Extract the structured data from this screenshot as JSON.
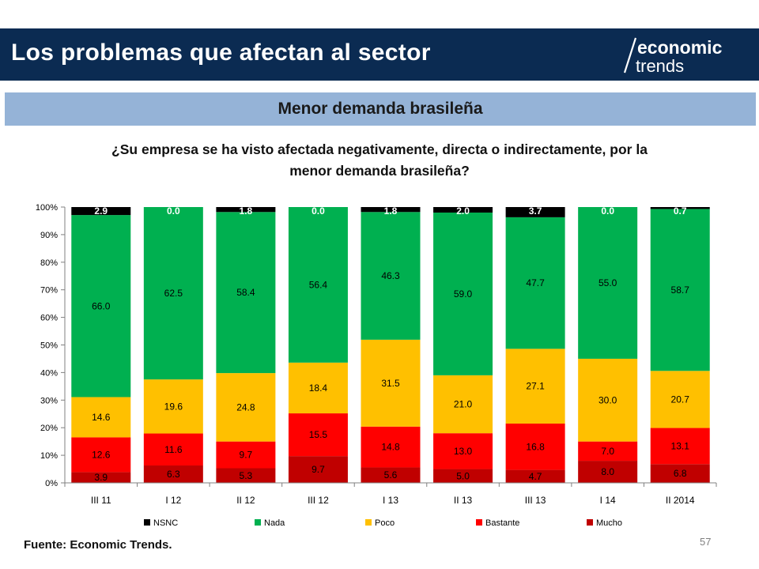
{
  "header": {
    "title": "Los problemas que afectan al sector"
  },
  "logo": {
    "line1": "economic",
    "line2": "trends"
  },
  "subtitle_band": {
    "label": "Menor demanda brasileña"
  },
  "question": {
    "line1": "¿Su empresa se ha visto afectada negativamente, directa o indirectamente, por la",
    "line2": "menor demanda brasileña?"
  },
  "footer": {
    "source": "Fuente: Economic Trends.",
    "page_number": "57"
  },
  "colors": {
    "header_bg": "#0b2b52",
    "band_bg": "#95b3d7"
  },
  "chart_data": {
    "type": "bar",
    "stacked": true,
    "percent_axis": true,
    "categories": [
      "III 11",
      "I 12",
      "II 12",
      "III 12",
      "I 13",
      "II 13",
      "III 13",
      "I 14",
      "II 2014"
    ],
    "ylim": [
      0,
      100
    ],
    "yticks": [
      "0%",
      "10%",
      "20%",
      "30%",
      "40%",
      "50%",
      "60%",
      "70%",
      "80%",
      "90%",
      "100%"
    ],
    "legend_position": "bottom",
    "series": [
      {
        "name": "Mucho",
        "color": "#c00000",
        "values": [
          3.9,
          6.3,
          5.3,
          9.7,
          5.6,
          5.0,
          4.7,
          8.0,
          6.8
        ],
        "labels": [
          "3.9",
          "6.3",
          "5.3",
          "9.7",
          "5.6",
          "5.0",
          "4.7",
          "8.0",
          "6.8"
        ]
      },
      {
        "name": "Bastante",
        "color": "#ff0000",
        "values": [
          12.6,
          11.6,
          9.7,
          15.5,
          14.8,
          13.0,
          16.8,
          7.0,
          13.1
        ],
        "labels": [
          "12.6",
          "11.6",
          "9.7",
          "15.5",
          "14.8",
          "13.0",
          "16.8",
          "7.0",
          "13.1"
        ]
      },
      {
        "name": "Poco",
        "color": "#ffc000",
        "values": [
          14.6,
          19.6,
          24.8,
          18.4,
          31.5,
          21.0,
          27.1,
          30.0,
          20.7
        ],
        "labels": [
          "14.6",
          "19.6",
          "24.8",
          "18.4",
          "31.5",
          "21.0",
          "27.1",
          "30.0",
          "20.7"
        ]
      },
      {
        "name": "Nada",
        "color": "#00b050",
        "values": [
          66.0,
          62.5,
          58.4,
          56.4,
          46.3,
          59.0,
          47.7,
          55.0,
          58.7
        ],
        "labels": [
          "66.0",
          "62.5",
          "58.4",
          "56.4",
          "46.3",
          "59.0",
          "47.7",
          "55.0",
          "58.7"
        ]
      },
      {
        "name": "NSNC",
        "color": "#000000",
        "values": [
          2.9,
          0.0,
          1.8,
          0.0,
          1.8,
          2.0,
          3.7,
          0.0,
          0.7
        ],
        "labels": [
          "2.9",
          "0.0",
          "1.8",
          "0.0",
          "1.8",
          "2.0",
          "3.7",
          "0.0",
          "0.7"
        ]
      }
    ],
    "legend_order": [
      "NSNC",
      "Nada",
      "Poco",
      "Bastante",
      "Mucho"
    ]
  }
}
